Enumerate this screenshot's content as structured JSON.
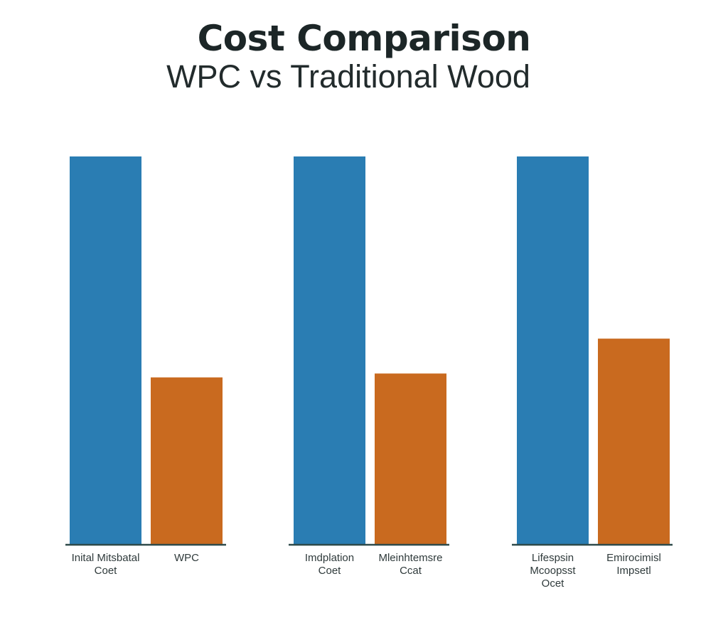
{
  "chart_data": {
    "type": "bar",
    "title": "Cost Comparison",
    "subtitle": "WPC vs Traditional Wood",
    "ylim": [
      0,
      100
    ],
    "grid": false,
    "legend": "none",
    "groups": [
      {
        "bars": [
          {
            "value": 100,
            "color": "#2a7db3",
            "label": [
              "Inital Mitsbatal",
              "Coet"
            ]
          },
          {
            "value": 43,
            "color": "#c96a1f",
            "label": [
              "WPC"
            ]
          }
        ]
      },
      {
        "bars": [
          {
            "value": 100,
            "color": "#2a7db3",
            "label": [
              "Imdplation",
              "Coet"
            ]
          },
          {
            "value": 44,
            "color": "#c96a1f",
            "label": [
              "Mleinhtemsre",
              "Ccat"
            ]
          }
        ]
      },
      {
        "bars": [
          {
            "value": 100,
            "color": "#2a7db3",
            "label": [
              "Lifespsin",
              "Mcoopsst",
              "Ocet"
            ]
          },
          {
            "value": 53,
            "color": "#c96a1f",
            "label": [
              "Emirocimisl",
              "Impsetl"
            ]
          }
        ]
      }
    ]
  },
  "colors": {
    "blue": "#2a7db3",
    "orange": "#c96a1f",
    "baseline": "#2e4a4a"
  }
}
